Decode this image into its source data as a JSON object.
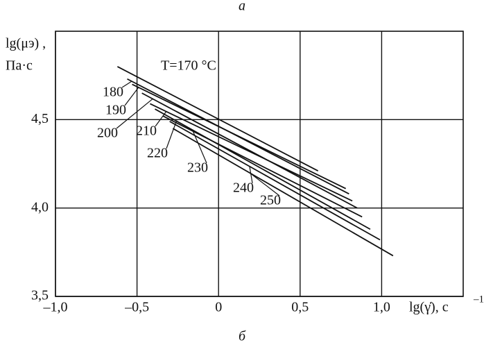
{
  "caption_top": "а",
  "caption_bottom": "б",
  "chart_data": {
    "type": "line",
    "ylabel": [
      "lg(μэ) ,",
      "Па·с"
    ],
    "xlabel": "lg(γ̇),  с",
    "xlabel_exp": "–1",
    "xlim": [
      -1.0,
      1.5
    ],
    "ylim": [
      3.5,
      5.0
    ],
    "xticks": [
      {
        "value": -1.0,
        "label": "–1,0"
      },
      {
        "value": -0.5,
        "label": "–0,5"
      },
      0,
      {
        "value": 0.5,
        "label": "0,5"
      },
      {
        "value": 1.0,
        "label": "1,0"
      }
    ],
    "yticks": [
      {
        "value": 3.5,
        "label": "3,5"
      },
      {
        "value": 4.0,
        "label": "4,0"
      },
      {
        "value": 4.5,
        "label": "4,5"
      }
    ],
    "grid": true,
    "series": [
      {
        "name": "T=170 °C",
        "color": "#111111",
        "x": [
          -0.62,
          0.61
        ],
        "values": [
          4.8,
          4.21
        ]
      },
      {
        "name": "180",
        "color": "#111111",
        "x": [
          -0.56,
          0.8
        ],
        "values": [
          4.73,
          4.08
        ]
      },
      {
        "name": "190",
        "color": "#111111",
        "x": [
          -0.53,
          0.78
        ],
        "values": [
          4.7,
          4.11
        ]
      },
      {
        "name": "200",
        "color": "#111111",
        "x": [
          -0.47,
          0.85
        ],
        "values": [
          4.65,
          4.0
        ]
      },
      {
        "name": "210",
        "color": "#111111",
        "x": [
          -0.42,
          0.82
        ],
        "values": [
          4.59,
          4.04
        ]
      },
      {
        "name": "220",
        "color": "#111111",
        "x": [
          -0.39,
          0.93
        ],
        "values": [
          4.56,
          3.88
        ]
      },
      {
        "name": "230",
        "color": "#111111",
        "x": [
          -0.34,
          0.88
        ],
        "values": [
          4.52,
          3.95
        ]
      },
      {
        "name": "240",
        "color": "#111111",
        "x": [
          -0.3,
          0.99
        ],
        "values": [
          4.49,
          3.82
        ]
      },
      {
        "name": "250",
        "color": "#111111",
        "x": [
          -0.28,
          1.07
        ],
        "values": [
          4.45,
          3.73
        ]
      }
    ]
  }
}
